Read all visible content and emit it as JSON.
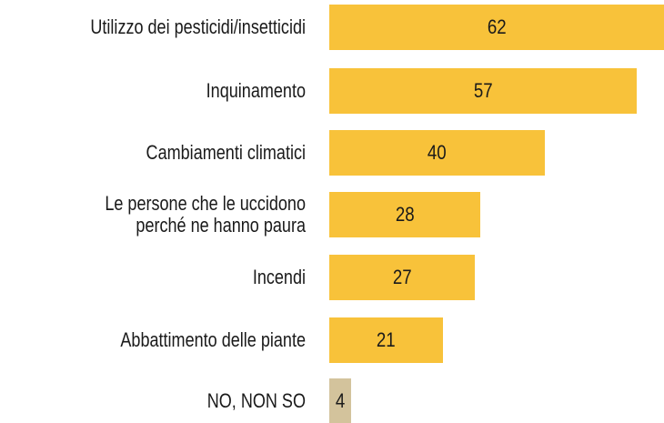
{
  "chart_data": {
    "type": "bar",
    "orientation": "horizontal",
    "categories": [
      "Utilizzo dei pesticidi/insetticidi",
      "Inquinamento",
      "Cambiamenti climatici",
      "Le persone che le uccidono\nperché ne hanno paura",
      "Incendi",
      "Abbattimento delle piante",
      "NO, NON SO"
    ],
    "values": [
      62,
      57,
      40,
      28,
      27,
      21,
      4
    ],
    "colors": [
      "#f8c23a",
      "#f8c23a",
      "#f8c23a",
      "#f8c23a",
      "#f8c23a",
      "#f8c23a",
      "#d3c39c"
    ],
    "xlim": [
      0,
      62
    ]
  }
}
